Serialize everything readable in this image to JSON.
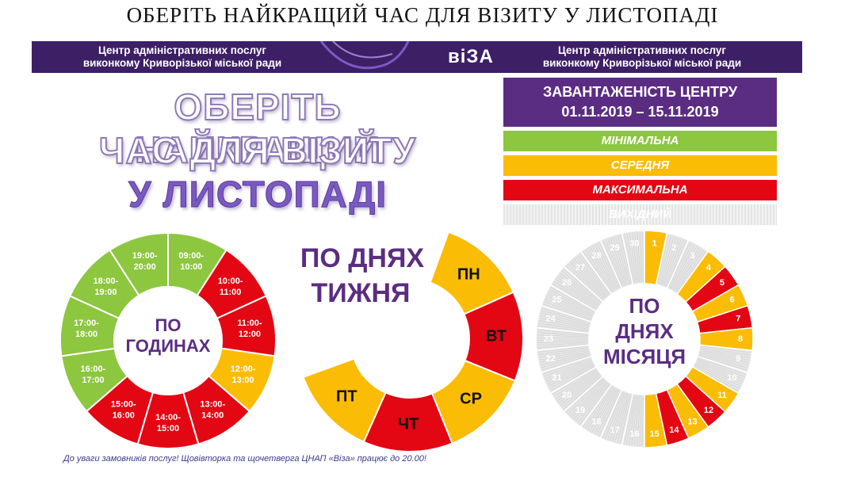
{
  "page_title": "ОБЕРІТЬ НАЙКРАЩИЙ ЧАС ДЛЯ ВІЗИТУ У ЛИСТОПАДІ",
  "banner": {
    "left_line1": "Центр адміністративних послуг",
    "left_line2": "виконкому Криворізької міської ради",
    "logo": "віЗА",
    "right_line1": "Центр адміністративних послуг",
    "right_line2": "виконкому Криворізької міської ради"
  },
  "headline": {
    "line1": "ОБЕРІТЬ НАЙКРАЩИЙ",
    "line2": "ЧАС ДЛЯ ВІЗИТУ",
    "line3": "У ЛИСТОПАДІ"
  },
  "legend": {
    "title_line1": "ЗАВАНТАЖЕНІСТЬ ЦЕНТРУ",
    "title_line2": "01.11.2019 – 15.11.2019",
    "items": [
      {
        "key": "min",
        "label": "МІНІМАЛЬНА",
        "color": "#8dc63f"
      },
      {
        "key": "mid",
        "label": "СЕРЕДНЯ",
        "color": "#fbbc05"
      },
      {
        "key": "max",
        "label": "МАКСИМАЛЬНА",
        "color": "#e30613"
      },
      {
        "key": "off",
        "label": "ВИХІДНИЙ",
        "color": "#e6e6e6"
      }
    ]
  },
  "chart_data": [
    {
      "type": "pie",
      "center_label": [
        "ПО",
        "ГОДИНАХ"
      ],
      "categories": [
        "09:00-10:00",
        "10:00-11:00",
        "11:00-12:00",
        "12:00-13:00",
        "13:00-14:00",
        "14:00-15:00",
        "15:00-16:00",
        "16:00-17:00",
        "17:00-18:00",
        "18:00-19:00",
        "19:00-20:00"
      ],
      "label_lines": [
        [
          "09:00-",
          "10:00"
        ],
        [
          "10:00-",
          "11:00"
        ],
        [
          "11:00-",
          "12:00"
        ],
        [
          "12:00-",
          "13:00"
        ],
        [
          "13:00-",
          "14:00"
        ],
        [
          "14:00-",
          "15:00"
        ],
        [
          "15:00-",
          "16:00"
        ],
        [
          "16:00-",
          "17:00"
        ],
        [
          "17:00-",
          "18:00"
        ],
        [
          "18:00-",
          "19:00"
        ],
        [
          "19:00-",
          "20:00"
        ]
      ],
      "levels": [
        "min",
        "max",
        "max",
        "mid",
        "max",
        "max",
        "max",
        "min",
        "min",
        "min",
        "min"
      ]
    },
    {
      "type": "pie",
      "title": [
        "ПО ДНЯХ",
        "ТИЖНЯ"
      ],
      "categories": [
        "ПН",
        "ВТ",
        "СР",
        "ЧТ",
        "ПТ"
      ],
      "levels": [
        "mid",
        "max",
        "mid",
        "max",
        "mid"
      ]
    },
    {
      "type": "pie",
      "center_label": [
        "ПО",
        "ДНЯХ",
        "МІСЯЦЯ"
      ],
      "categories": [
        "1",
        "2",
        "3",
        "4",
        "5",
        "6",
        "7",
        "8",
        "9",
        "10",
        "11",
        "12",
        "13",
        "14",
        "15",
        "16",
        "17",
        "18",
        "19",
        "20",
        "21",
        "22",
        "23",
        "24",
        "25",
        "26",
        "27",
        "28",
        "29",
        "30"
      ],
      "levels": [
        "mid",
        "off",
        "off",
        "mid",
        "max",
        "mid",
        "max",
        "mid",
        "off",
        "off",
        "mid",
        "max",
        "mid",
        "max",
        "mid",
        "off",
        "off",
        "off",
        "off",
        "off",
        "off",
        "off",
        "off",
        "off",
        "off",
        "off",
        "off",
        "off",
        "off",
        "off"
      ]
    }
  ],
  "footnote": "До уваги замовників послуг!  Щовівторка та щочетверга ЦНАП «Віза» працює до 20.00!"
}
